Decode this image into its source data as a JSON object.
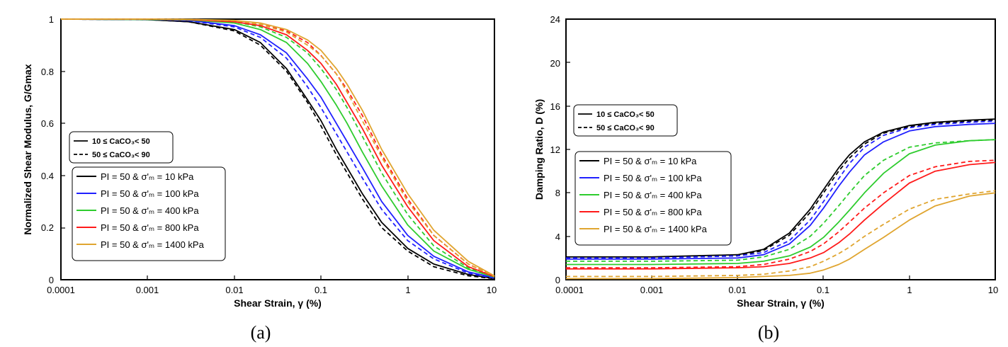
{
  "colors": {
    "pi50_10": "#000000",
    "pi50_100": "#2020ff",
    "pi50_400": "#2ecc2e",
    "pi50_800": "#ff1a1a",
    "pi50_1400": "#e0a530"
  },
  "chart_data": [
    {
      "id": "a",
      "type": "line",
      "caption": "(a)",
      "xlabel": "Shear Strain, γ (%)",
      "ylabel": "Normalized Shear Modulus, G/Gmax",
      "xscale": "log",
      "xlim": [
        0.0001,
        10
      ],
      "ylim": [
        0,
        1
      ],
      "xticks": [
        0.0001,
        0.001,
        0.01,
        0.1,
        1,
        10
      ],
      "xtick_labels": [
        "0.0001",
        "0.001",
        "0.01",
        "0.1",
        "1",
        "10"
      ],
      "yticks": [
        0,
        0.2,
        0.4,
        0.6,
        0.8,
        1
      ],
      "ytick_labels": [
        "0",
        "0.2",
        "0.4",
        "0.6",
        "0.8",
        "1"
      ],
      "legend_style": [
        {
          "dash": "solid",
          "label": "10 ≤ CaCO₃< 50"
        },
        {
          "dash": "dashed",
          "label": "50 ≤ CaCO₃< 90"
        }
      ],
      "legend_series": [
        {
          "key": "pi50_10",
          "label": "PI = 50 & σ'ₘ = 10 kPa"
        },
        {
          "key": "pi50_100",
          "label": "PI = 50 & σ'ₘ = 100 kPa"
        },
        {
          "key": "pi50_400",
          "label": "PI = 50 & σ'ₘ = 400 kPa"
        },
        {
          "key": "pi50_800",
          "label": "PI = 50 & σ'ₘ = 800 kPa"
        },
        {
          "key": "pi50_1400",
          "label": "PI = 50 & σ'ₘ = 1400 kPa"
        }
      ],
      "series": [
        {
          "key": "pi50_10",
          "style": "solid",
          "x": [
            0.0001,
            0.001,
            0.003,
            0.01,
            0.02,
            0.04,
            0.07,
            0.1,
            0.15,
            0.2,
            0.3,
            0.5,
            1,
            2,
            5,
            10
          ],
          "y": [
            1,
            0.998,
            0.99,
            0.96,
            0.91,
            0.81,
            0.69,
            0.61,
            0.5,
            0.43,
            0.33,
            0.22,
            0.12,
            0.06,
            0.02,
            0.005
          ]
        },
        {
          "key": "pi50_10",
          "style": "dashed",
          "x": [
            0.0001,
            0.001,
            0.003,
            0.01,
            0.02,
            0.04,
            0.07,
            0.1,
            0.15,
            0.2,
            0.3,
            0.5,
            1,
            2,
            5,
            10
          ],
          "y": [
            1,
            0.998,
            0.99,
            0.955,
            0.9,
            0.8,
            0.68,
            0.59,
            0.48,
            0.41,
            0.31,
            0.2,
            0.11,
            0.05,
            0.015,
            0.004
          ]
        },
        {
          "key": "pi50_100",
          "style": "solid",
          "x": [
            0.0001,
            0.001,
            0.003,
            0.01,
            0.02,
            0.04,
            0.07,
            0.1,
            0.15,
            0.2,
            0.3,
            0.5,
            1,
            2,
            5,
            10
          ],
          "y": [
            1,
            0.999,
            0.995,
            0.975,
            0.94,
            0.87,
            0.77,
            0.7,
            0.6,
            0.53,
            0.43,
            0.3,
            0.17,
            0.09,
            0.03,
            0.008
          ]
        },
        {
          "key": "pi50_100",
          "style": "dashed",
          "x": [
            0.0001,
            0.001,
            0.003,
            0.01,
            0.02,
            0.04,
            0.07,
            0.1,
            0.15,
            0.2,
            0.3,
            0.5,
            1,
            2,
            5,
            10
          ],
          "y": [
            1,
            0.999,
            0.994,
            0.97,
            0.93,
            0.85,
            0.74,
            0.66,
            0.56,
            0.49,
            0.39,
            0.27,
            0.15,
            0.08,
            0.025,
            0.006
          ]
        },
        {
          "key": "pi50_400",
          "style": "solid",
          "x": [
            0.0001,
            0.001,
            0.003,
            0.01,
            0.02,
            0.04,
            0.07,
            0.1,
            0.15,
            0.2,
            0.3,
            0.5,
            1,
            2,
            5,
            10
          ],
          "y": [
            1,
            0.999,
            0.997,
            0.985,
            0.96,
            0.91,
            0.83,
            0.76,
            0.67,
            0.6,
            0.49,
            0.36,
            0.21,
            0.11,
            0.04,
            0.01
          ]
        },
        {
          "key": "pi50_400",
          "style": "dashed",
          "x": [
            0.0001,
            0.001,
            0.003,
            0.01,
            0.02,
            0.04,
            0.07,
            0.1,
            0.15,
            0.2,
            0.3,
            0.5,
            1,
            2,
            5,
            10
          ],
          "y": [
            1,
            0.999,
            0.998,
            0.99,
            0.97,
            0.93,
            0.87,
            0.81,
            0.73,
            0.66,
            0.55,
            0.41,
            0.25,
            0.13,
            0.045,
            0.012
          ]
        },
        {
          "key": "pi50_800",
          "style": "solid",
          "x": [
            0.0001,
            0.001,
            0.003,
            0.01,
            0.02,
            0.04,
            0.07,
            0.1,
            0.15,
            0.2,
            0.3,
            0.5,
            1,
            2,
            5,
            10
          ],
          "y": [
            1,
            1,
            0.998,
            0.99,
            0.975,
            0.94,
            0.88,
            0.83,
            0.75,
            0.68,
            0.58,
            0.44,
            0.28,
            0.15,
            0.05,
            0.012
          ]
        },
        {
          "key": "pi50_800",
          "style": "dashed",
          "x": [
            0.0001,
            0.001,
            0.003,
            0.01,
            0.02,
            0.04,
            0.07,
            0.1,
            0.15,
            0.2,
            0.3,
            0.5,
            1,
            2,
            5,
            10
          ],
          "y": [
            1,
            1,
            0.999,
            0.993,
            0.98,
            0.955,
            0.91,
            0.86,
            0.79,
            0.73,
            0.63,
            0.48,
            0.31,
            0.17,
            0.06,
            0.014
          ]
        },
        {
          "key": "pi50_1400",
          "style": "solid",
          "x": [
            0.0001,
            0.001,
            0.003,
            0.01,
            0.02,
            0.04,
            0.07,
            0.1,
            0.15,
            0.2,
            0.3,
            0.5,
            1,
            2,
            5,
            10
          ],
          "y": [
            1,
            1,
            0.999,
            0.995,
            0.985,
            0.96,
            0.92,
            0.88,
            0.81,
            0.75,
            0.65,
            0.5,
            0.33,
            0.19,
            0.07,
            0.015
          ]
        },
        {
          "key": "pi50_1400",
          "style": "dashed",
          "x": [
            0.0001,
            0.001,
            0.003,
            0.01,
            0.02,
            0.04,
            0.07,
            0.1,
            0.15,
            0.2,
            0.3,
            0.5,
            1,
            2,
            5,
            10
          ],
          "y": [
            1,
            1,
            0.999,
            0.994,
            0.98,
            0.95,
            0.9,
            0.86,
            0.79,
            0.72,
            0.61,
            0.47,
            0.3,
            0.17,
            0.06,
            0.013
          ]
        }
      ]
    },
    {
      "id": "b",
      "type": "line",
      "caption": "(b)",
      "xlabel": "Shear Strain, γ (%)",
      "ylabel": "Damping Ratio, D (%)",
      "xscale": "log",
      "xlim": [
        0.0001,
        10
      ],
      "ylim": [
        0,
        24
      ],
      "xticks": [
        0.0001,
        0.001,
        0.01,
        0.1,
        1,
        10
      ],
      "xtick_labels": [
        "0.0001",
        "0.001",
        "0.01",
        "0.1",
        "1",
        "10"
      ],
      "yticks": [
        0,
        4,
        8,
        12,
        16,
        20,
        24
      ],
      "ytick_labels": [
        "0",
        "4",
        "8",
        "12",
        "16",
        "20",
        "24"
      ],
      "legend_style": [
        {
          "dash": "solid",
          "label": "10 ≤ CaCO₃< 50"
        },
        {
          "dash": "dashed",
          "label": "50 ≤ CaCO₃< 90"
        }
      ],
      "legend_series": [
        {
          "key": "pi50_10",
          "label": "PI = 50 & σ'ₘ = 10 kPa"
        },
        {
          "key": "pi50_100",
          "label": "PI = 50 & σ'ₘ = 100 kPa"
        },
        {
          "key": "pi50_400",
          "label": "PI = 50 & σ'ₘ = 400 kPa"
        },
        {
          "key": "pi50_800",
          "label": "PI = 50 & σ'ₘ = 800 kPa"
        },
        {
          "key": "pi50_1400",
          "label": "PI = 50 & σ'ₘ = 1400 kPa"
        }
      ],
      "series": [
        {
          "key": "pi50_10",
          "style": "solid",
          "x": [
            0.0001,
            0.001,
            0.01,
            0.02,
            0.04,
            0.07,
            0.1,
            0.15,
            0.2,
            0.3,
            0.5,
            1,
            2,
            5,
            10
          ],
          "y": [
            2.1,
            2.1,
            2.3,
            2.8,
            4.3,
            6.5,
            8.3,
            10.3,
            11.5,
            12.7,
            13.6,
            14.2,
            14.5,
            14.7,
            14.8
          ]
        },
        {
          "key": "pi50_10",
          "style": "dashed",
          "x": [
            0.0001,
            0.001,
            0.01,
            0.02,
            0.04,
            0.07,
            0.1,
            0.15,
            0.2,
            0.3,
            0.5,
            1,
            2,
            5,
            10
          ],
          "y": [
            2.0,
            2.0,
            2.2,
            2.7,
            4.1,
            6.2,
            8.0,
            10.0,
            11.2,
            12.5,
            13.5,
            14.1,
            14.4,
            14.6,
            14.7
          ]
        },
        {
          "key": "pi50_100",
          "style": "solid",
          "x": [
            0.0001,
            0.001,
            0.01,
            0.02,
            0.04,
            0.07,
            0.1,
            0.15,
            0.2,
            0.3,
            0.5,
            1,
            2,
            5,
            10
          ],
          "y": [
            1.9,
            1.9,
            2.0,
            2.3,
            3.3,
            5.0,
            6.6,
            8.6,
            9.9,
            11.5,
            12.7,
            13.7,
            14.1,
            14.3,
            14.4
          ]
        },
        {
          "key": "pi50_100",
          "style": "dashed",
          "x": [
            0.0001,
            0.001,
            0.01,
            0.02,
            0.04,
            0.07,
            0.1,
            0.15,
            0.2,
            0.3,
            0.5,
            1,
            2,
            5,
            10
          ],
          "y": [
            2.0,
            2.0,
            2.2,
            2.5,
            3.6,
            5.5,
            7.2,
            9.3,
            10.7,
            12.2,
            13.3,
            14.0,
            14.3,
            14.5,
            14.6
          ]
        },
        {
          "key": "pi50_400",
          "style": "solid",
          "x": [
            0.0001,
            0.001,
            0.01,
            0.02,
            0.04,
            0.07,
            0.1,
            0.15,
            0.2,
            0.3,
            0.5,
            1,
            2,
            5,
            10
          ],
          "y": [
            1.4,
            1.4,
            1.5,
            1.7,
            2.2,
            3.0,
            3.9,
            5.3,
            6.4,
            8.0,
            9.8,
            11.6,
            12.4,
            12.8,
            12.9
          ]
        },
        {
          "key": "pi50_400",
          "style": "dashed",
          "x": [
            0.0001,
            0.001,
            0.01,
            0.02,
            0.04,
            0.07,
            0.1,
            0.15,
            0.2,
            0.3,
            0.5,
            1,
            2,
            5,
            10
          ],
          "y": [
            1.7,
            1.7,
            1.8,
            2.1,
            2.8,
            4.0,
            5.2,
            6.8,
            8.0,
            9.6,
            11.0,
            12.2,
            12.6,
            12.8,
            12.9
          ]
        },
        {
          "key": "pi50_800",
          "style": "solid",
          "x": [
            0.0001,
            0.001,
            0.01,
            0.02,
            0.04,
            0.07,
            0.1,
            0.15,
            0.2,
            0.3,
            0.5,
            1,
            2,
            5,
            10
          ],
          "y": [
            1.0,
            1.0,
            1.1,
            1.2,
            1.5,
            2.0,
            2.5,
            3.4,
            4.2,
            5.5,
            7.0,
            8.9,
            10.0,
            10.6,
            10.8
          ]
        },
        {
          "key": "pi50_800",
          "style": "dashed",
          "x": [
            0.0001,
            0.001,
            0.01,
            0.02,
            0.04,
            0.07,
            0.1,
            0.15,
            0.2,
            0.3,
            0.5,
            1,
            2,
            5,
            10
          ],
          "y": [
            1.1,
            1.1,
            1.2,
            1.4,
            1.9,
            2.6,
            3.3,
            4.4,
            5.3,
            6.6,
            8.0,
            9.6,
            10.4,
            10.9,
            11.0
          ]
        },
        {
          "key": "pi50_1400",
          "style": "solid",
          "x": [
            0.0001,
            0.001,
            0.01,
            0.02,
            0.04,
            0.07,
            0.1,
            0.15,
            0.2,
            0.3,
            0.5,
            1,
            2,
            5,
            10
          ],
          "y": [
            0.1,
            0.1,
            0.2,
            0.3,
            0.4,
            0.6,
            0.9,
            1.4,
            1.9,
            2.8,
            3.9,
            5.5,
            6.8,
            7.7,
            8.0
          ]
        },
        {
          "key": "pi50_1400",
          "style": "dashed",
          "x": [
            0.0001,
            0.001,
            0.01,
            0.02,
            0.04,
            0.07,
            0.1,
            0.15,
            0.2,
            0.3,
            0.5,
            1,
            2,
            5,
            10
          ],
          "y": [
            0.3,
            0.3,
            0.4,
            0.5,
            0.8,
            1.2,
            1.7,
            2.4,
            3.0,
            4.0,
            5.1,
            6.5,
            7.4,
            7.9,
            8.2
          ]
        }
      ]
    }
  ]
}
